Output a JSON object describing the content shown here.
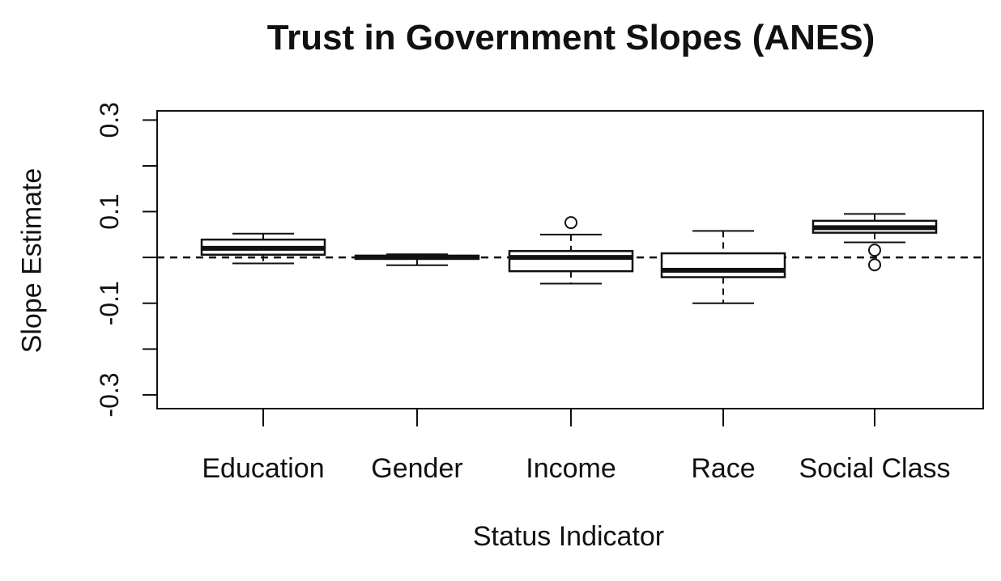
{
  "chart_data": {
    "type": "boxplot",
    "title": "Trust in Government Slopes (ANES)",
    "xlabel": "Status Indicator",
    "ylabel": "Slope Estimate",
    "ylim": [
      -0.33,
      0.32
    ],
    "yticks": [
      -0.3,
      -0.2,
      -0.1,
      0.0,
      0.1,
      0.2,
      0.3
    ],
    "ytick_labels": [
      "-0.3",
      "",
      "-0.1",
      "",
      "0.1",
      "",
      "0.3"
    ],
    "reference_line": {
      "y": 0,
      "style": "dashed"
    },
    "grid": false,
    "categories": [
      "Education",
      "Gender",
      "Income",
      "Race",
      "Social Class"
    ],
    "boxes": [
      {
        "category": "Education",
        "whisker_low": -0.013,
        "q1": 0.006,
        "median": 0.02,
        "q3": 0.039,
        "whisker_high": 0.052,
        "outliers": []
      },
      {
        "category": "Gender",
        "whisker_low": -0.017,
        "q1": -0.003,
        "median": 0.0,
        "q3": 0.004,
        "whisker_high": 0.007,
        "outliers": []
      },
      {
        "category": "Income",
        "whisker_low": -0.057,
        "q1": -0.03,
        "median": 0.0,
        "q3": 0.014,
        "whisker_high": 0.05,
        "outliers": [
          0.076
        ]
      },
      {
        "category": "Race",
        "whisker_low": -0.1,
        "q1": -0.043,
        "median": -0.028,
        "q3": 0.009,
        "whisker_high": 0.058,
        "outliers": []
      },
      {
        "category": "Social Class",
        "whisker_low": 0.033,
        "q1": 0.054,
        "median": 0.065,
        "q3": 0.08,
        "whisker_high": 0.095,
        "outliers": [
          0.016,
          -0.016
        ]
      }
    ]
  }
}
